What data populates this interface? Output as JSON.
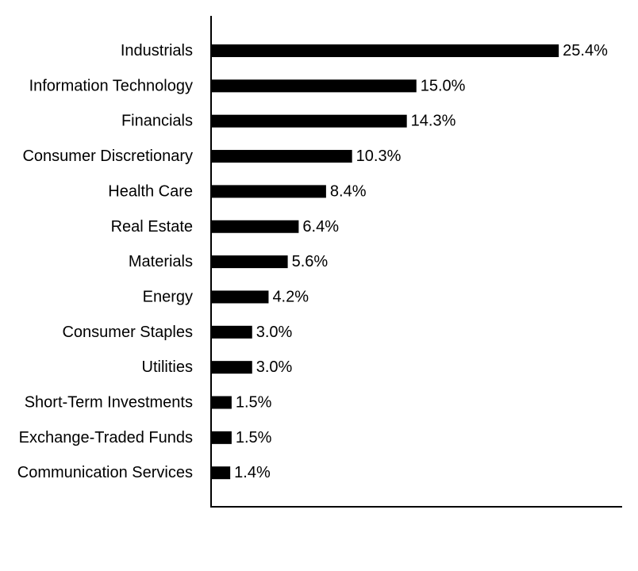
{
  "chart_data": {
    "type": "bar",
    "orientation": "horizontal",
    "title": "",
    "xlabel": "",
    "ylabel": "",
    "categories": [
      "Industrials",
      "Information Technology",
      "Financials",
      "Consumer Discretionary",
      "Health Care",
      "Real Estate",
      "Materials",
      "Energy",
      "Consumer Staples",
      "Utilities",
      "Short-Term Investments",
      "Exchange-Traded Funds",
      "Communication Services"
    ],
    "values": [
      25.4,
      15.0,
      14.3,
      10.3,
      8.4,
      6.4,
      5.6,
      4.2,
      3.0,
      3.0,
      1.5,
      1.5,
      1.4
    ],
    "value_labels": [
      "25.4%",
      "15.0%",
      "14.3%",
      "10.3%",
      "8.4%",
      "6.4%",
      "5.6%",
      "4.2%",
      "3.0%",
      "3.0%",
      "1.5%",
      "1.5%",
      "1.4%"
    ],
    "xlim": [
      0,
      30
    ],
    "grid": false,
    "legend": "none",
    "bar_color": "#000000",
    "axis_color": "#000000"
  }
}
